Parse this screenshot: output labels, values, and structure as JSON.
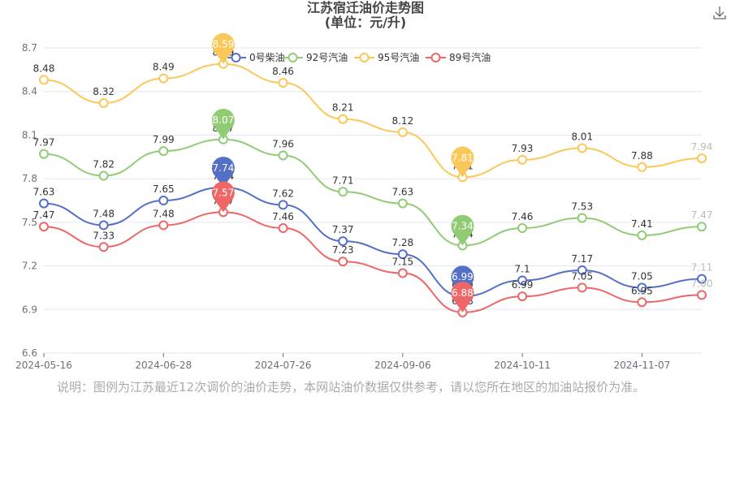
{
  "chart_data": {
    "type": "line",
    "title": "江苏宿迁油价走势图",
    "subtitle": "(单位：元/升)",
    "categories": [
      "2024-05-16",
      null,
      "2024-06-28",
      null,
      "2024-07-26",
      null,
      "2024-09-06",
      null,
      "2024-10-11",
      null,
      "2024-11-07",
      null
    ],
    "series": [
      {
        "name": "0号柴油",
        "color": "#5470c6",
        "values": [
          7.63,
          7.48,
          7.65,
          7.74,
          7.62,
          7.37,
          7.28,
          6.99,
          7.1,
          7.17,
          7.05,
          7.11
        ]
      },
      {
        "name": "92号汽油",
        "color": "#91cc75",
        "values": [
          7.97,
          7.82,
          7.99,
          8.07,
          7.96,
          7.71,
          7.63,
          7.34,
          7.46,
          7.53,
          7.41,
          7.47
        ]
      },
      {
        "name": "95号汽油",
        "color": "#fac858",
        "values": [
          8.48,
          8.32,
          8.49,
          8.59,
          8.46,
          8.21,
          8.12,
          7.81,
          7.93,
          8.01,
          7.88,
          7.94
        ]
      },
      {
        "name": "89号汽油",
        "color": "#ee6666",
        "values": [
          7.47,
          7.33,
          7.48,
          7.57,
          7.46,
          7.23,
          7.15,
          6.88,
          6.99,
          7.05,
          6.95,
          7.0
        ],
        "value_labels": [
          "7.47",
          "7.33",
          "7.48",
          "7.57",
          "7.46",
          "7.23",
          "7.15",
          "6.88",
          "6.99",
          "7.05",
          "6.95",
          "7.00"
        ]
      }
    ],
    "ylim": [
      6.6,
      8.7
    ],
    "yticks": [
      6.6,
      6.9,
      7.2,
      7.5,
      7.8,
      8.1,
      8.4,
      8.7
    ],
    "grid": true,
    "smooth": true,
    "mark_points": [
      "max",
      "min"
    ]
  },
  "note": "说明：图例为江苏最近12次调价的油价走势，本网站油价数据仅供参考，请以您所在地区的加油站报价为准。"
}
